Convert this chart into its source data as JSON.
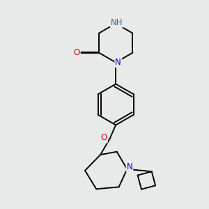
{
  "bg_color": "#e8eaea",
  "bond_color": "#000000",
  "atom_colors": {
    "N": "#0000cc",
    "NH_color": "#336688",
    "O": "#cc0000",
    "C": "#000000"
  },
  "bond_width": 1.4,
  "font_size_atom": 8.5
}
